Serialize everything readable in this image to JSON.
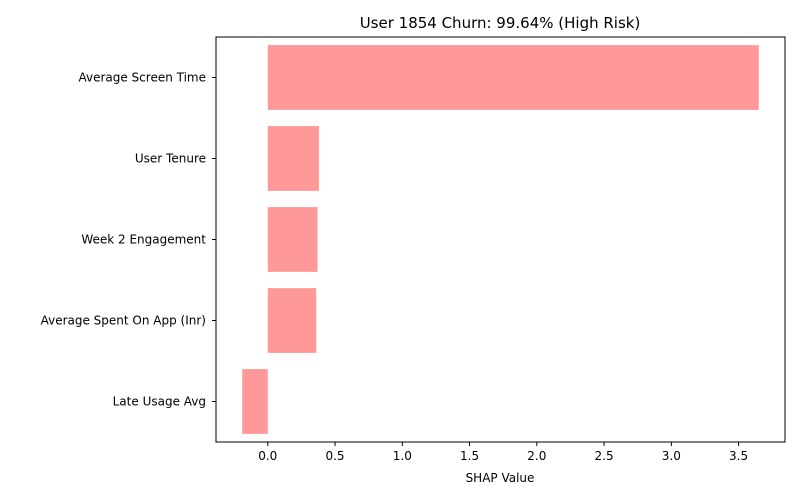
{
  "chart_data": {
    "type": "bar",
    "orientation": "horizontal",
    "title": "User 1854 Churn: 99.64% (High Risk)",
    "xlabel": "SHAP Value",
    "ylabel": "",
    "categories": [
      "Average Screen Time",
      "User Tenure",
      "Week 2 Engagement",
      "Average Spent On App (Inr)",
      "Late Usage Avg"
    ],
    "values": [
      3.65,
      0.38,
      0.37,
      0.36,
      -0.19
    ],
    "xlim": [
      -0.385,
      3.845
    ],
    "xticks": [
      "0.0",
      "0.5",
      "1.0",
      "1.5",
      "2.0",
      "2.5",
      "3.0",
      "3.5"
    ],
    "xtick_values": [
      0,
      0.5,
      1,
      1.5,
      2,
      2.5,
      3,
      3.5
    ],
    "grid": false,
    "legend": "none",
    "bar_color": "#ff9999"
  }
}
